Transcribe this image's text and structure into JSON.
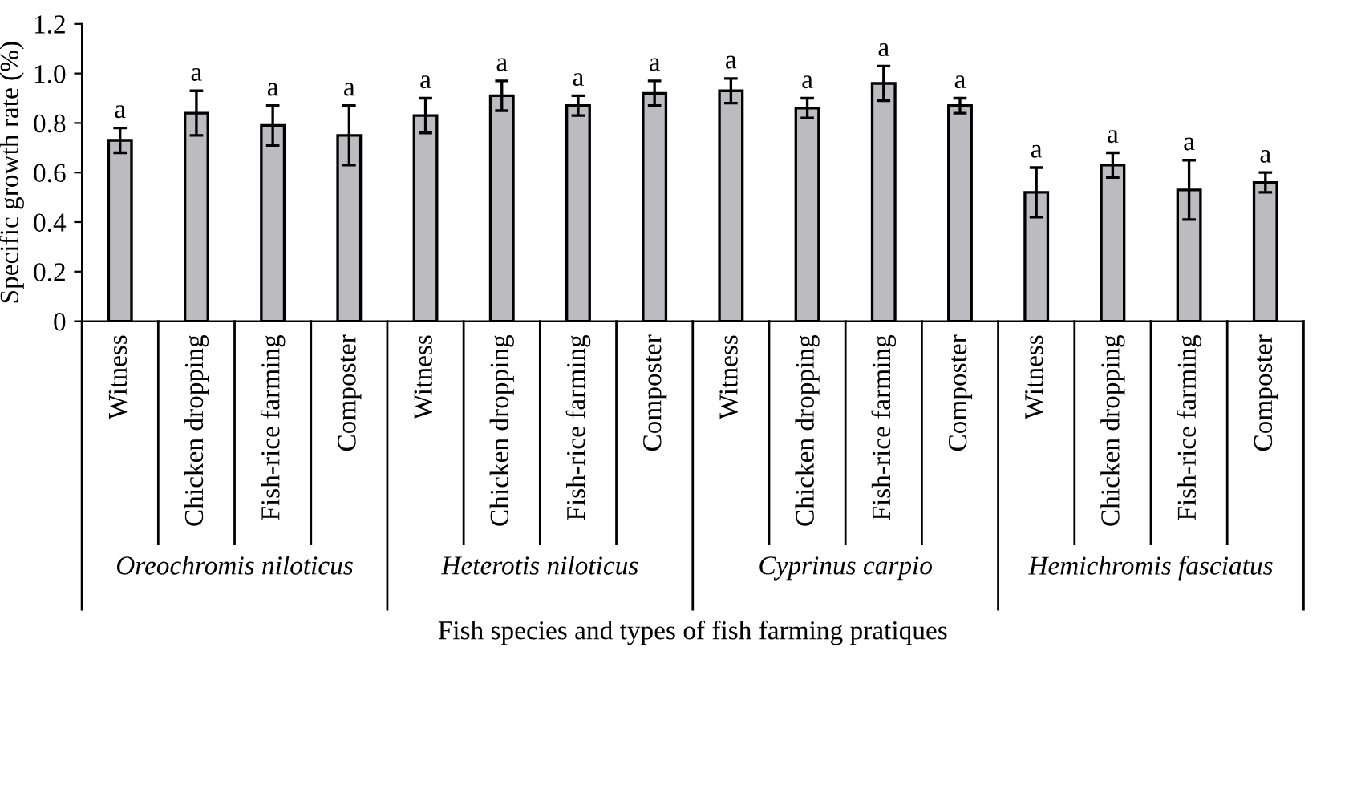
{
  "chart_data": {
    "type": "bar",
    "categories": [
      "Witness",
      "Chicken dropping",
      "Fish-rice farming",
      "Composter",
      "Witness",
      "Chicken dropping",
      "Fish-rice farming",
      "Composter",
      "Witness",
      "Chicken dropping",
      "Fish-rice farming",
      "Composter",
      "Witness",
      "Chicken dropping",
      "Fish-rice farming",
      "Composter"
    ],
    "values": [
      0.73,
      0.84,
      0.79,
      0.75,
      0.83,
      0.91,
      0.87,
      0.92,
      0.93,
      0.86,
      0.96,
      0.87,
      0.52,
      0.63,
      0.53,
      0.56
    ],
    "errors": [
      0.05,
      0.09,
      0.08,
      0.12,
      0.07,
      0.06,
      0.04,
      0.05,
      0.05,
      0.04,
      0.07,
      0.03,
      0.1,
      0.05,
      0.12,
      0.04
    ],
    "value_labels": [
      "a",
      "a",
      "a",
      "a",
      "a",
      "a",
      "a",
      "a",
      "a",
      "a",
      "a",
      "a",
      "a",
      "a",
      "a",
      "a"
    ],
    "color": "#bcbcc0",
    "ylabel": "Specific growth rate (%)",
    "xlabel": "Fish species and types of fish farming pratiques",
    "annotations": [
      "Oreochromis niloticus",
      "Heterotis niloticus",
      "Cyprinus carpio",
      "Hemichromis fasciatus"
    ],
    "ylim": [
      0,
      1.2
    ],
    "yticks": [
      0,
      0.2,
      0.4,
      0.6,
      0.8,
      {
        "value": 1.0,
        "label": "1.0"
      },
      1.2
    ],
    "grid": false
  }
}
